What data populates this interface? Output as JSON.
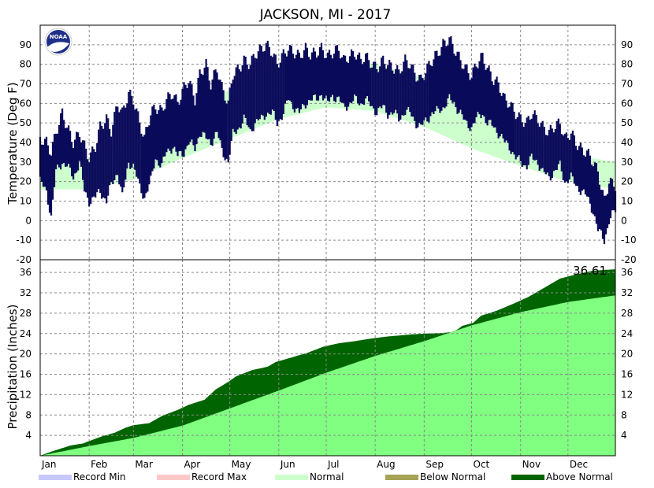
{
  "chart_data": [
    {
      "type": "line",
      "title": "JACKSON, MI - 2017",
      "ylabel": "Temperature (Deg F)",
      "ylim": [
        -20,
        100
      ],
      "yticks": [
        -20,
        -10,
        0,
        10,
        20,
        30,
        40,
        50,
        60,
        70,
        80,
        90
      ],
      "months": [
        "Jan",
        "Feb",
        "Mar",
        "Apr",
        "May",
        "Jun",
        "Jul",
        "Aug",
        "Sep",
        "Oct",
        "Nov",
        "Dec"
      ],
      "grid": true,
      "colors": {
        "observed": "#0a0a5a",
        "normal": "#ccffcc"
      },
      "normal_band": {
        "day": [
          1,
          32,
          60,
          91,
          121,
          152,
          182,
          213,
          244,
          274,
          305,
          335,
          365
        ],
        "low": [
          16,
          16,
          21,
          32,
          42,
          52,
          58,
          56,
          48,
          37,
          28,
          20,
          16
        ],
        "high": [
          30,
          32,
          41,
          55,
          67,
          77,
          82,
          80,
          73,
          60,
          46,
          34,
          30
        ]
      },
      "series": [
        {
          "day": [
            1,
            5,
            8,
            11,
            15,
            18,
            22,
            26,
            29,
            32,
            36,
            39,
            43,
            46,
            50,
            53,
            57,
            60,
            64,
            67,
            71,
            74,
            78,
            81,
            85,
            88,
            92,
            95,
            99,
            102,
            106,
            109,
            113,
            116,
            120,
            123,
            127,
            130,
            134,
            137,
            141,
            144,
            148,
            151,
            155,
            158,
            162,
            165,
            169,
            172,
            176,
            179,
            183,
            186,
            190,
            193,
            197,
            200,
            204,
            207,
            211,
            214,
            218,
            221,
            225,
            228,
            232,
            235,
            239,
            242,
            246,
            249,
            253,
            256,
            260,
            263,
            267,
            270,
            274,
            277,
            281,
            284,
            288,
            291,
            295,
            298,
            302,
            305,
            309,
            312,
            316,
            319,
            323,
            326,
            330,
            333,
            337,
            340,
            344,
            347,
            351,
            354,
            358,
            361,
            365
          ],
          "low": [
            20,
            15,
            2,
            25,
            30,
            28,
            22,
            30,
            15,
            10,
            12,
            15,
            10,
            18,
            25,
            12,
            30,
            28,
            17,
            12,
            20,
            32,
            28,
            35,
            38,
            33,
            35,
            40,
            37,
            45,
            42,
            40,
            45,
            36,
            30,
            44,
            48,
            52,
            46,
            50,
            52,
            55,
            55,
            50,
            55,
            62,
            58,
            55,
            60,
            62,
            62,
            65,
            60,
            64,
            62,
            58,
            60,
            62,
            60,
            62,
            58,
            56,
            58,
            55,
            55,
            52,
            56,
            55,
            50,
            48,
            52,
            55,
            56,
            58,
            62,
            60,
            55,
            50,
            48,
            52,
            55,
            50,
            48,
            45,
            40,
            38,
            32,
            30,
            28,
            32,
            30,
            25,
            22,
            25,
            28,
            20,
            22,
            18,
            15,
            12,
            5,
            -5,
            -10,
            0,
            5
          ],
          "high": [
            42,
            40,
            35,
            45,
            55,
            48,
            40,
            45,
            38,
            32,
            38,
            48,
            52,
            46,
            60,
            55,
            65,
            62,
            50,
            42,
            55,
            58,
            56,
            62,
            65,
            60,
            68,
            72,
            62,
            75,
            80,
            70,
            78,
            68,
            60,
            75,
            78,
            82,
            80,
            85,
            88,
            90,
            86,
            80,
            85,
            88,
            86,
            84,
            88,
            85,
            86,
            88,
            84,
            86,
            88,
            82,
            84,
            86,
            82,
            84,
            80,
            78,
            82,
            80,
            78,
            76,
            82,
            80,
            74,
            72,
            78,
            82,
            86,
            90,
            93,
            88,
            82,
            78,
            74,
            80,
            84,
            78,
            72,
            70,
            62,
            60,
            55,
            52,
            50,
            55,
            52,
            48,
            45,
            48,
            50,
            42,
            45,
            40,
            36,
            35,
            30,
            25,
            10,
            20,
            18
          ]
        }
      ]
    },
    {
      "type": "area",
      "ylabel": "Precipitation (Inches)",
      "ylim": [
        0,
        38.5
      ],
      "yticks": [
        4,
        8,
        12,
        16,
        20,
        24,
        28,
        32,
        36
      ],
      "months": [
        "Jan",
        "Feb",
        "Mar",
        "Apr",
        "May",
        "Jun",
        "Jul",
        "Aug",
        "Sep",
        "Oct",
        "Nov",
        "Dec"
      ],
      "grid": true,
      "annotation": "36.61",
      "colors": {
        "normal": "#80ff80",
        "above_normal": "#006400",
        "below_normal": "#a6a354"
      },
      "normal_cumulative": {
        "day": [
          1,
          32,
          60,
          91,
          121,
          152,
          182,
          213,
          244,
          274,
          305,
          335,
          365
        ],
        "value": [
          0,
          1.9,
          3.5,
          5.9,
          9.3,
          12.8,
          16.3,
          19.6,
          22.5,
          25.6,
          28.2,
          30.2,
          31.5
        ]
      },
      "observed_cumulative": {
        "day": [
          1,
          8,
          15,
          20,
          28,
          33,
          40,
          48,
          55,
          60,
          70,
          78,
          88,
          95,
          105,
          112,
          120,
          125,
          135,
          145,
          150,
          160,
          170,
          180,
          190,
          200,
          210,
          220,
          235,
          245,
          255,
          262,
          265,
          268,
          275,
          280,
          290,
          300,
          310,
          320,
          330,
          340,
          350,
          358,
          365
        ],
        "value": [
          0,
          0.8,
          1.5,
          2,
          2.4,
          3,
          3.8,
          4.5,
          5.5,
          6,
          6.4,
          7.8,
          9,
          10,
          11,
          13,
          14.5,
          15.6,
          16.8,
          17.5,
          18.4,
          19.3,
          20.2,
          21.4,
          22.1,
          22.5,
          23,
          23.4,
          23.8,
          24,
          24.1,
          24.3,
          24.8,
          25.5,
          26.1,
          27.5,
          28.5,
          29.8,
          31.2,
          33,
          34.8,
          35.6,
          36.3,
          36.5,
          36.61
        ]
      }
    }
  ],
  "legend": [
    {
      "label": "Record Min",
      "color": "#c8c8ff"
    },
    {
      "label": "Record Max",
      "color": "#ffc8c8"
    },
    {
      "label": "Normal",
      "color": "#ccffcc"
    },
    {
      "label": "Below Normal",
      "color": "#a6a354"
    },
    {
      "label": "Above Normal",
      "color": "#006400"
    }
  ],
  "logo": {
    "text": "NOAA",
    "icon": "noaa-logo-icon"
  }
}
